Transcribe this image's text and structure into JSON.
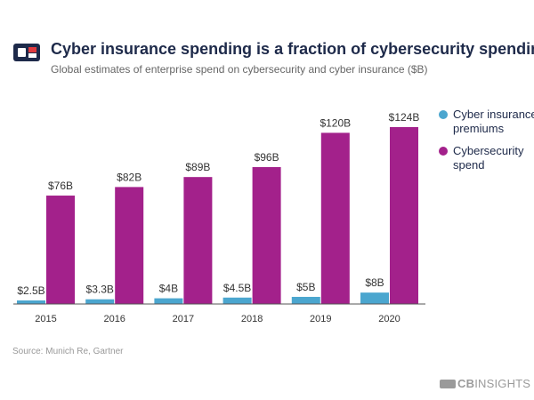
{
  "header": {
    "title": "Cyber insurance spending is a fraction of cybersecurity spending",
    "subtitle": "Global estimates of enterprise spend on cybersecurity and cyber insurance ($B)"
  },
  "footer": {
    "source": "Source: Munich Re, Gartner",
    "brand_bold": "CB",
    "brand_rest": "INSIGHTS"
  },
  "colors": {
    "insurance": "#4ba6cf",
    "cybersecurity": "#a3218b",
    "label_text": "#333333",
    "axis": "#555555",
    "title": "#1e2a4a",
    "logo_navy": "#1e2a4a",
    "logo_red": "#e03a3e"
  },
  "chart_data": {
    "type": "bar",
    "title": "Cyber insurance spending is a fraction of cybersecurity spending",
    "xlabel": "",
    "ylabel": "",
    "categories": [
      "2015",
      "2016",
      "2017",
      "2018",
      "2019",
      "2020"
    ],
    "ylim": [
      0,
      124
    ],
    "grid": false,
    "legend_position": "right",
    "series": [
      {
        "name": "Cyber insurance premiums",
        "legend_lines": [
          "Cyber insurance",
          "premiums"
        ],
        "values": [
          2.5,
          3.3,
          4,
          4.5,
          5,
          8
        ],
        "labels": [
          "$2.5B",
          "$3.3B",
          "$4B",
          "$4.5B",
          "$5B",
          "$8B"
        ]
      },
      {
        "name": "Cybersecurity spend",
        "legend_lines": [
          "Cybersecurity",
          "spend"
        ],
        "values": [
          76,
          82,
          89,
          96,
          120,
          124
        ],
        "labels": [
          "$76B",
          "$82B",
          "$89B",
          "$96B",
          "$120B",
          "$124B"
        ]
      }
    ]
  }
}
